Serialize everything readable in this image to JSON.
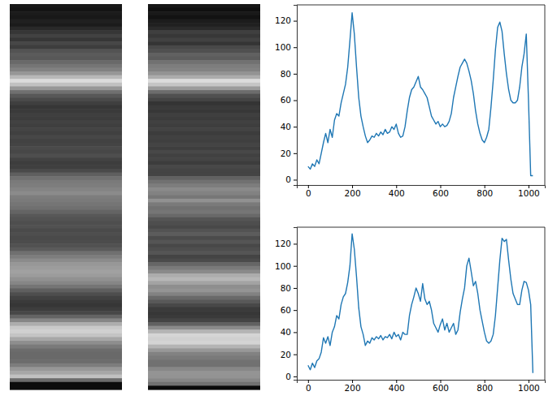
{
  "chart_data": [
    {
      "type": "line",
      "color": "#1f77b4",
      "x": [
        0,
        10,
        20,
        30,
        40,
        50,
        60,
        70,
        80,
        90,
        100,
        110,
        120,
        130,
        140,
        150,
        160,
        170,
        180,
        190,
        200,
        210,
        220,
        230,
        240,
        250,
        260,
        270,
        280,
        290,
        300,
        310,
        320,
        330,
        340,
        350,
        360,
        370,
        380,
        390,
        400,
        410,
        420,
        430,
        440,
        450,
        460,
        470,
        480,
        490,
        500,
        510,
        520,
        530,
        540,
        550,
        560,
        570,
        580,
        590,
        600,
        610,
        620,
        630,
        640,
        650,
        660,
        670,
        680,
        690,
        700,
        710,
        720,
        730,
        740,
        750,
        760,
        770,
        780,
        790,
        800,
        810,
        820,
        830,
        840,
        850,
        860,
        870,
        880,
        890,
        900,
        910,
        920,
        930,
        940,
        950,
        960,
        970,
        980,
        990,
        1000,
        1010,
        1020
      ],
      "values": [
        10,
        8,
        12,
        10,
        15,
        12,
        20,
        28,
        35,
        28,
        38,
        32,
        45,
        50,
        48,
        58,
        65,
        72,
        85,
        105,
        126,
        110,
        85,
        62,
        48,
        40,
        33,
        28,
        30,
        33,
        32,
        35,
        33,
        36,
        34,
        38,
        35,
        36,
        40,
        38,
        42,
        35,
        32,
        33,
        40,
        52,
        62,
        68,
        70,
        74,
        78,
        70,
        68,
        65,
        62,
        55,
        48,
        45,
        42,
        44,
        40,
        42,
        40,
        41,
        44,
        50,
        62,
        70,
        78,
        85,
        88,
        91,
        88,
        82,
        75,
        65,
        52,
        42,
        35,
        30,
        28,
        32,
        38,
        55,
        75,
        98,
        115,
        119,
        112,
        95,
        80,
        68,
        60,
        58,
        58,
        60,
        70,
        85,
        95,
        110,
        60,
        3,
        3
      ],
      "xlim": [
        -51,
        1074
      ],
      "xticks": [
        0,
        200,
        400,
        600,
        800,
        1000
      ],
      "ylim": [
        -4,
        132
      ],
      "yticks": [
        0,
        20,
        40,
        60,
        80,
        100,
        120
      ]
    },
    {
      "type": "line",
      "color": "#1f77b4",
      "x": [
        0,
        10,
        20,
        30,
        40,
        50,
        60,
        70,
        80,
        90,
        100,
        110,
        120,
        130,
        140,
        150,
        160,
        170,
        180,
        190,
        200,
        210,
        220,
        230,
        240,
        250,
        260,
        270,
        280,
        290,
        300,
        310,
        320,
        330,
        340,
        350,
        360,
        370,
        380,
        390,
        400,
        410,
        420,
        430,
        440,
        450,
        460,
        470,
        480,
        490,
        500,
        510,
        520,
        530,
        540,
        550,
        560,
        570,
        580,
        590,
        600,
        610,
        620,
        630,
        640,
        650,
        660,
        670,
        680,
        690,
        700,
        710,
        720,
        730,
        740,
        750,
        760,
        770,
        780,
        790,
        800,
        810,
        820,
        830,
        840,
        850,
        860,
        870,
        880,
        890,
        900,
        910,
        920,
        930,
        940,
        950,
        960,
        970,
        980,
        990,
        1000,
        1010,
        1020
      ],
      "values": [
        10,
        6,
        12,
        8,
        14,
        16,
        22,
        35,
        30,
        36,
        28,
        40,
        45,
        55,
        52,
        65,
        72,
        75,
        85,
        100,
        129,
        115,
        90,
        62,
        45,
        38,
        28,
        32,
        30,
        35,
        33,
        36,
        34,
        37,
        33,
        36,
        35,
        38,
        34,
        40,
        36,
        38,
        33,
        40,
        38,
        38,
        55,
        65,
        72,
        80,
        75,
        68,
        84,
        70,
        65,
        68,
        60,
        48,
        44,
        40,
        47,
        52,
        42,
        48,
        40,
        44,
        48,
        38,
        42,
        58,
        70,
        80,
        100,
        107,
        95,
        82,
        86,
        75,
        60,
        50,
        40,
        32,
        30,
        32,
        38,
        55,
        80,
        105,
        125,
        122,
        124,
        105,
        88,
        75,
        70,
        65,
        65,
        78,
        86,
        85,
        78,
        65,
        3
      ],
      "xlim": [
        -51,
        1074
      ],
      "xticks": [
        0,
        200,
        400,
        600,
        800,
        1000
      ],
      "ylim": [
        -3,
        135
      ],
      "yticks": [
        0,
        20,
        40,
        60,
        80,
        100,
        120
      ]
    }
  ]
}
